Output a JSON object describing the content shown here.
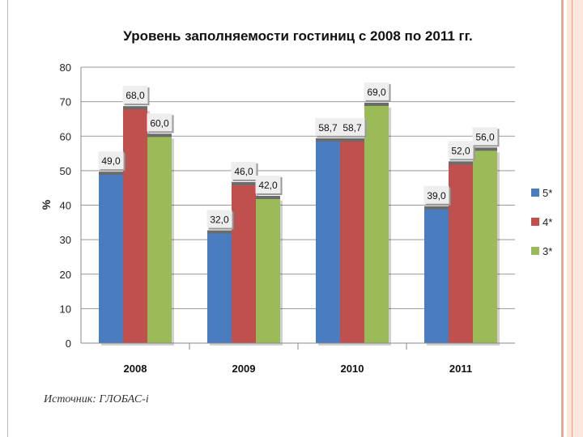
{
  "source_note": "Источник: ГЛОБАС-i",
  "colors": {
    "5*": "#4a7dbf",
    "4*": "#c0504d",
    "3*": "#9bbb59",
    "label_bg": "#eeeeee",
    "grid": "#999999"
  },
  "chart_data": {
    "type": "bar",
    "title": "Уровень заполняемости гостиниц с 2008 по 2011 гг.",
    "xlabel": "",
    "ylabel": "%",
    "ylim": [
      0,
      80
    ],
    "yticks": [
      0,
      10,
      20,
      30,
      40,
      50,
      60,
      70,
      80
    ],
    "grid": true,
    "legend_position": "right",
    "categories": [
      "2008",
      "2009",
      "2010",
      "2011"
    ],
    "series": [
      {
        "name": "5*",
        "values": [
          49.0,
          32.0,
          58.7,
          39.0
        ],
        "labels": [
          "49,0",
          "32,0",
          "58,7",
          "39,0"
        ]
      },
      {
        "name": "4*",
        "values": [
          68.0,
          46.0,
          58.7,
          52.0
        ],
        "labels": [
          "68,0",
          "46,0",
          "58,7",
          "52,0"
        ]
      },
      {
        "name": "3*",
        "values": [
          60.0,
          42.0,
          69.0,
          56.0
        ],
        "labels": [
          "60,0",
          "42,0",
          "69,0",
          "56,0"
        ]
      }
    ]
  }
}
